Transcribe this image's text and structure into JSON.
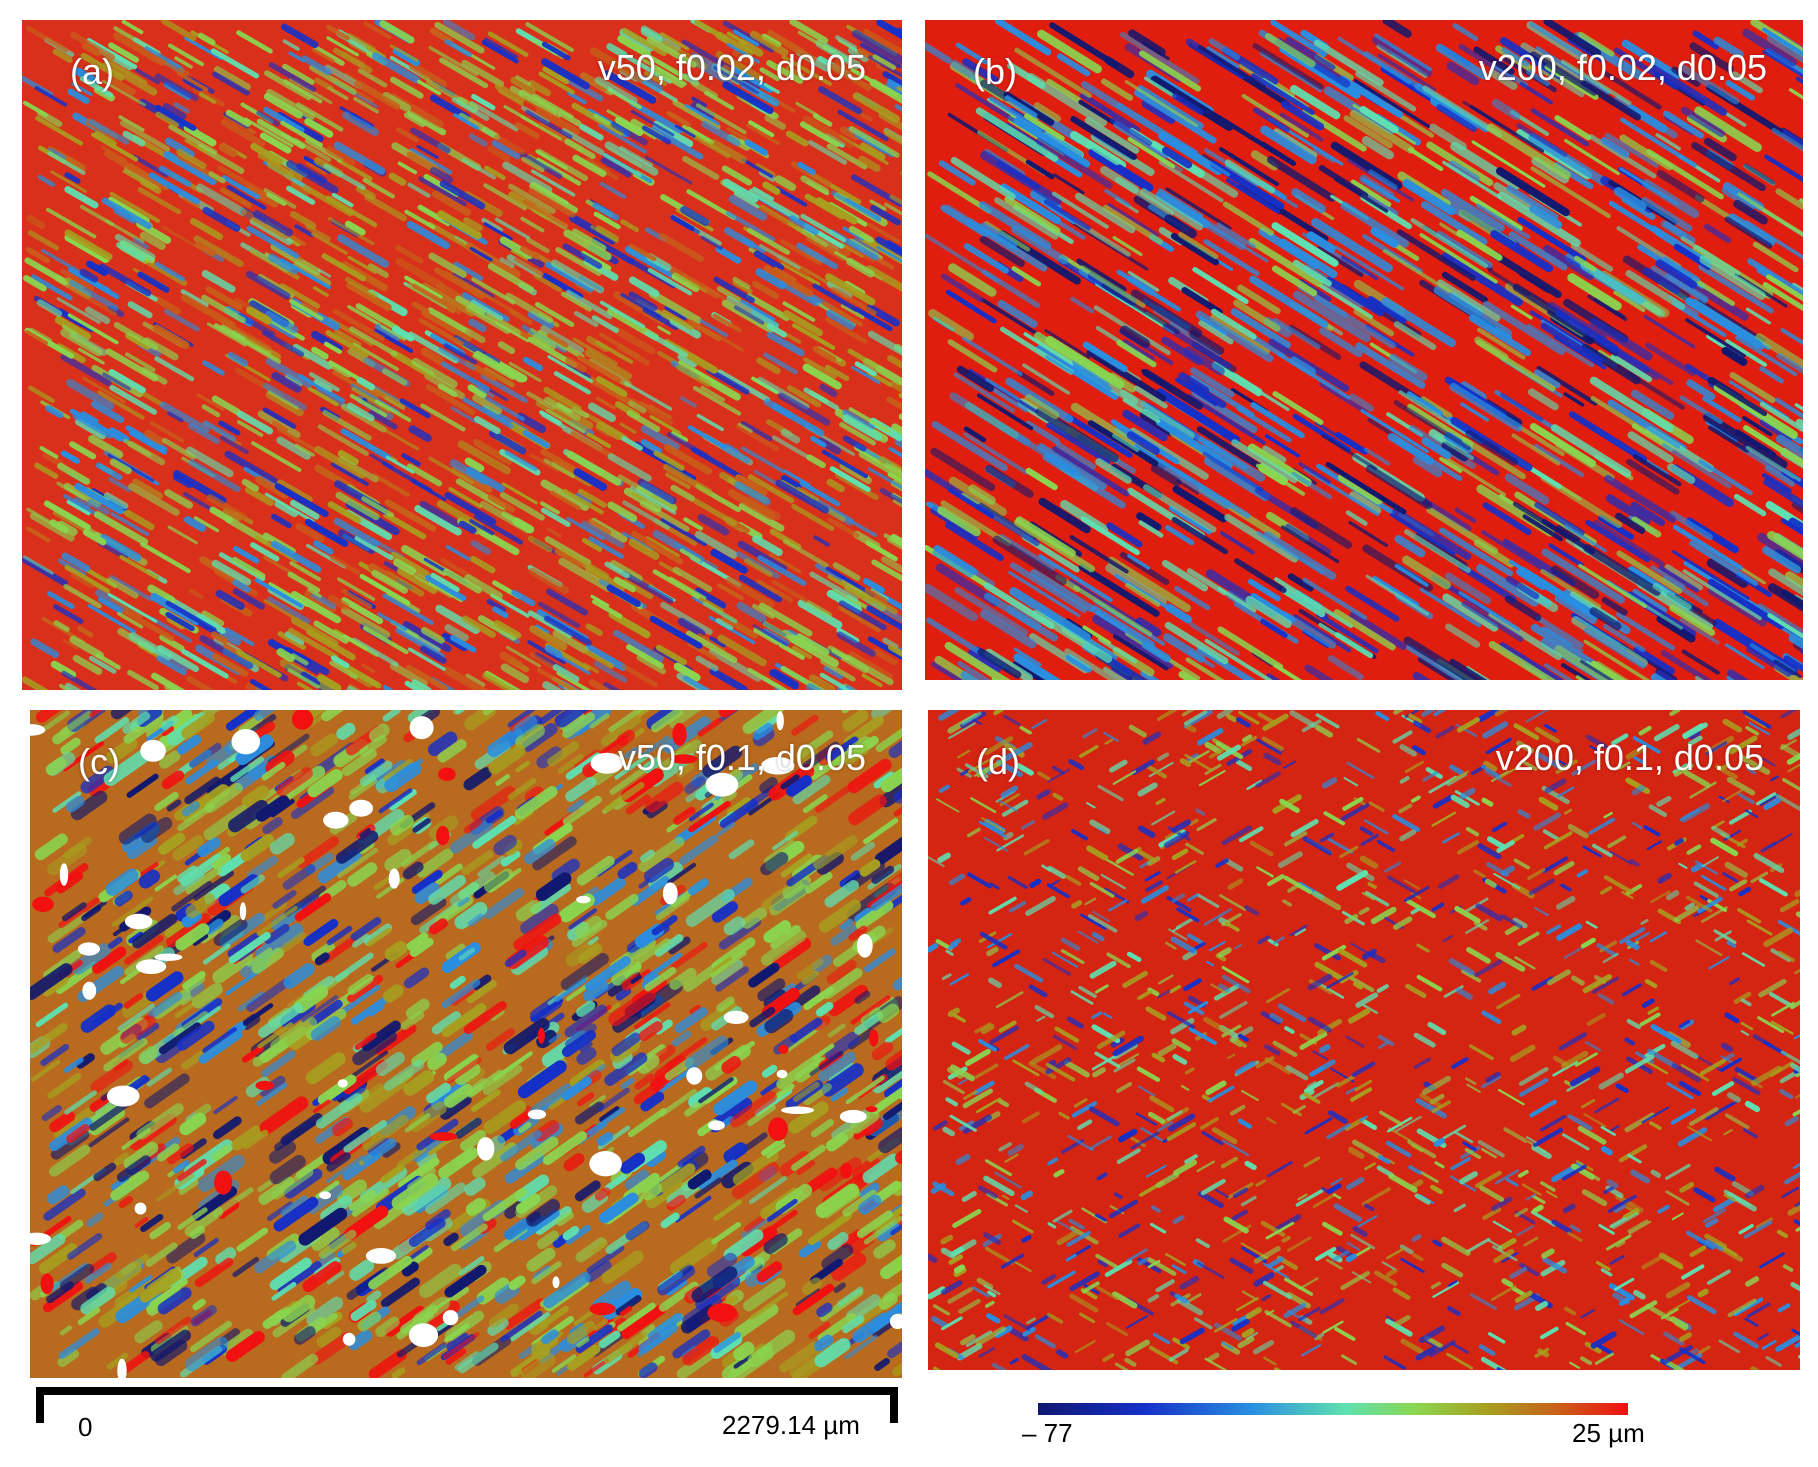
{
  "figure": {
    "panels": [
      {
        "label": "(a)",
        "title": "v50, f0.02, d0.05",
        "pattern": "fine-diagonal-streaks",
        "base_color": "#d8301a"
      },
      {
        "label": "(b)",
        "title": "v200, f0.02, d0.05",
        "pattern": "diagonal-grooves",
        "base_color": "#e01e10"
      },
      {
        "label": "(c)",
        "title": "v50, f0.1, d0.05",
        "pattern": "coarse-pitted",
        "base_color": "#b86a1e"
      },
      {
        "label": "(d)",
        "title": "v200, f0.1, d0.05",
        "pattern": "crosshatch",
        "base_color": "#d42412"
      }
    ],
    "scale_bar": {
      "start_label": "0",
      "end_label": "2279.14 µm"
    },
    "color_bar": {
      "min_label": "– 77",
      "max_label": "25 µm",
      "colors": [
        "#101870",
        "#1530c8",
        "#2a8ee0",
        "#5fe0b0",
        "#8ad650",
        "#a7a020",
        "#c8601a",
        "#f21010"
      ]
    }
  }
}
